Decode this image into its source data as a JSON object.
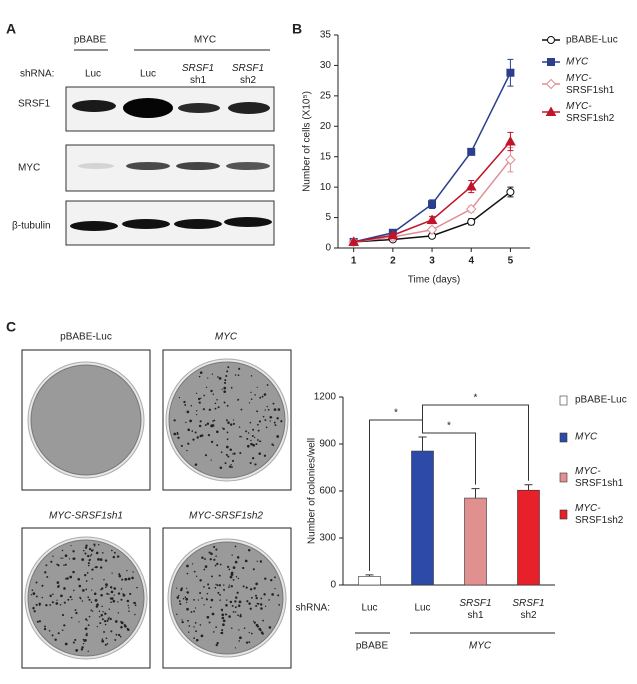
{
  "panels": [
    "A",
    "B",
    "C"
  ],
  "blot": {
    "groups": [
      "pBABE",
      "MYC"
    ],
    "shrna_label": "shRNA:",
    "lanes": [
      "Luc",
      "Luc",
      "SRSF1 sh1",
      "SRSF1 sh2"
    ],
    "rows": [
      "SRSF1",
      "MYC",
      "β-tubulin"
    ]
  },
  "plates": [
    "pBABE-Luc",
    "MYC",
    "MYC-SRSF1sh1",
    "MYC-SRSF1sh2"
  ],
  "chart_data": [
    {
      "type": "line",
      "xlabel": "Time (days)",
      "ylabel": "Number of cells (X10⁵)",
      "x": [
        1,
        2,
        3,
        4,
        5
      ],
      "xlim": [
        0.6,
        5.5
      ],
      "xticks": [
        1,
        2,
        3,
        4,
        5
      ],
      "ylim": [
        0,
        35
      ],
      "yticks": [
        0,
        5,
        10,
        15,
        20,
        25,
        30,
        35
      ],
      "series": [
        {
          "name": "pBABE-Luc",
          "color": "#111111",
          "marker": "circle",
          "values": [
            1,
            1.4,
            2,
            4.3,
            9.2
          ],
          "errors": [
            0.2,
            0.3,
            0.4,
            0.5,
            0.8
          ]
        },
        {
          "name": "MYC",
          "color": "#2b3f8c",
          "marker": "square",
          "values": [
            1,
            2.5,
            7.2,
            15.8,
            28.8
          ],
          "errors": [
            0.2,
            0.3,
            0.7,
            0.5,
            2.2
          ]
        },
        {
          "name": "MYC-SRSF1sh1",
          "color": "#e08e95",
          "marker": "diamond",
          "values": [
            1,
            1.8,
            3,
            6.4,
            14.5
          ],
          "errors": [
            0.2,
            0.3,
            0.4,
            0.5,
            2
          ]
        },
        {
          "name": "MYC-SRSF1sh2",
          "color": "#c0142a",
          "marker": "triangle",
          "values": [
            1,
            2.1,
            4.6,
            10.1,
            17.5
          ],
          "errors": [
            0.2,
            0.3,
            0.6,
            1,
            1.5
          ]
        }
      ]
    },
    {
      "type": "bar",
      "ylabel": "Number of colonies/well",
      "shrna_label": "shRNA:",
      "categories": [
        "Luc",
        "Luc",
        "SRSF1 sh1",
        "SRSF1 sh2"
      ],
      "groups": [
        "pBABE",
        "MYC"
      ],
      "values": [
        55,
        855,
        555,
        605
      ],
      "errors": [
        10,
        90,
        60,
        35
      ],
      "colors": [
        "#ffffff",
        "#2e4aa8",
        "#e0908f",
        "#e8202a"
      ],
      "legend": [
        "pBABE-Luc",
        "MYC",
        "MYC-SRSF1sh1",
        "MYC-SRSF1sh2"
      ],
      "annotations": [
        "*",
        "*",
        "*"
      ],
      "ylim": [
        0,
        1200
      ],
      "yticks": [
        0,
        300,
        600,
        900,
        1200
      ]
    }
  ]
}
